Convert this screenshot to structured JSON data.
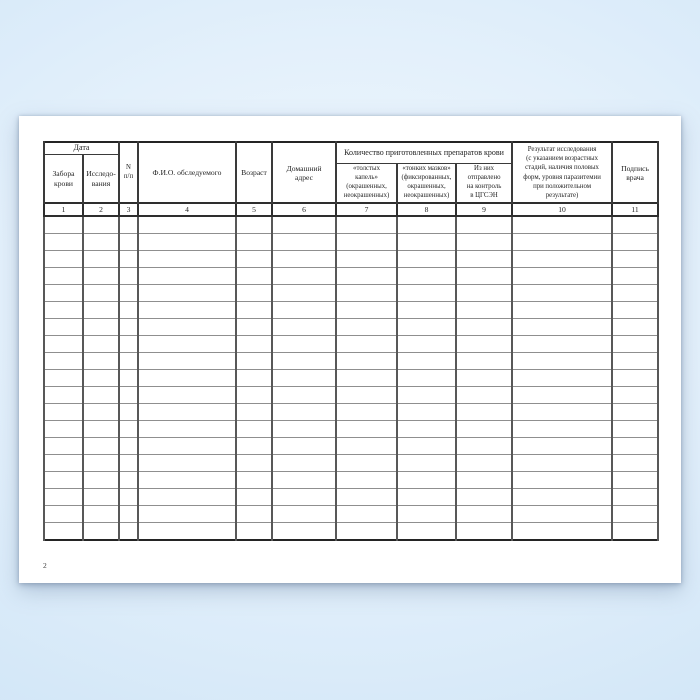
{
  "page": {
    "number": "2"
  },
  "table": {
    "header": {
      "date_group": "Дата",
      "date_sub_blood": "Забора\nкрови",
      "date_sub_research": "Исследо-\nвания",
      "num": "N\nп/п",
      "fio": "Ф.И.О. обследуемого",
      "age": "Возраст",
      "address": "Домашний\nадрес",
      "prep_group": "Количество приготовленных препаратов крови",
      "prep_sub_thick": "«толстых\nкапель»\n(окрашенных,\nнеокрашенных)",
      "prep_sub_thin": "«тонких мазков»\n(фиксированных,\nокрашенных,\nнеокрашенных)",
      "prep_sub_control": "Из них\nотправлено\nна контроль\nв ЦГСЭН",
      "result": "Результат исследования\n(с указанием  возрастных\nстадий,  наличия половых\nформ, уровня паразитемии\nпри  положительном\nрезультате)",
      "signature": "Подпись\nврача"
    },
    "column_numbers": [
      "1",
      "2",
      "3",
      "4",
      "5",
      "6",
      "7",
      "8",
      "9",
      "10",
      "11"
    ],
    "empty_row_count": 19
  }
}
